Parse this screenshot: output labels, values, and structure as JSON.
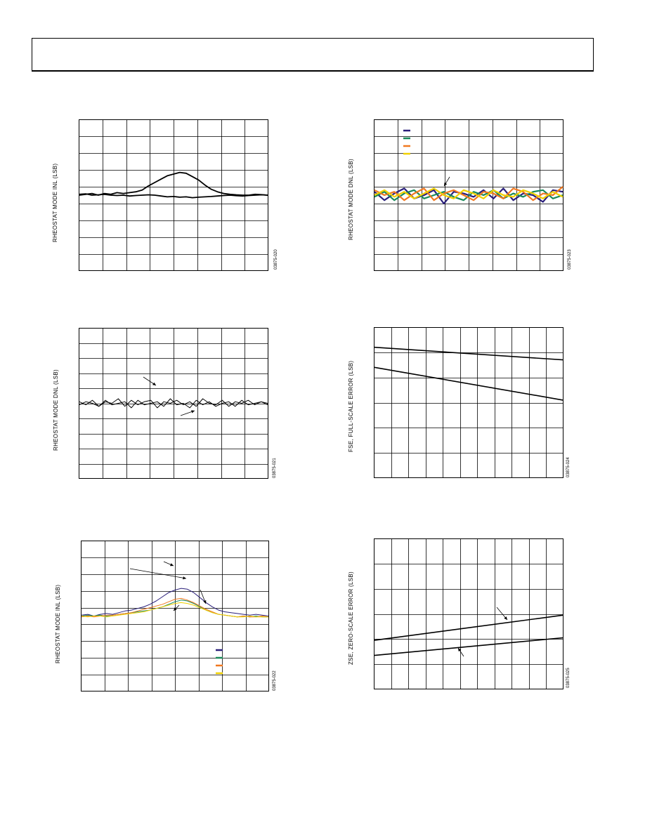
{
  "charts": [
    {
      "id": "c1",
      "chart_data": {
        "type": "line",
        "title": "",
        "ylabel": "RHEOSTAT MODE INL (LSB)",
        "figure_id": "03875-020",
        "grid": true,
        "x_divisions": 8,
        "y_divisions": 9,
        "series": [
          {
            "values": [
              0.0,
              0.05,
              0.1,
              0.0,
              0.1,
              0.05,
              0.15,
              0.1,
              0.15,
              0.2,
              0.3,
              0.55,
              0.75,
              0.95,
              1.15,
              1.25,
              1.35,
              1.3,
              1.1,
              0.9,
              0.6,
              0.35,
              0.2,
              0.1,
              0.05,
              0.02,
              0.0,
              0.0,
              0.05,
              0.03,
              0.0
            ],
            "color": "#000000",
            "width": 1.8
          },
          {
            "values": [
              0.05,
              0.08,
              0.0,
              0.02,
              0.05,
              0.0,
              -0.02,
              0.0,
              -0.05,
              -0.02,
              0.0,
              0.02,
              0.0,
              -0.05,
              -0.1,
              -0.08,
              -0.12,
              -0.1,
              -0.15,
              -0.12,
              -0.1,
              -0.08,
              -0.05,
              -0.02,
              0.0,
              -0.03,
              -0.05,
              -0.02,
              0.0,
              0.02,
              0.0
            ],
            "color": "#000000",
            "width": 1.8
          }
        ]
      }
    },
    {
      "id": "c2",
      "chart_data": {
        "type": "line",
        "title": "",
        "ylabel": "RHEOSTAT MODE DNL (LSB)",
        "figure_id": "03875-023",
        "grid": true,
        "x_divisions": 8,
        "y_divisions": 9,
        "series": [
          {
            "values": [
              0.2,
              -0.3,
              0.1,
              0.4,
              -0.2,
              0.0,
              0.3,
              -0.5,
              0.2,
              0.1,
              -0.1,
              0.3,
              -0.2,
              0.4,
              -0.3,
              0.1,
              0.0,
              -0.4,
              0.3,
              0.2
            ],
            "color": "#2a1f7a",
            "width": 2.2
          },
          {
            "values": [
              -0.1,
              0.2,
              -0.3,
              0.1,
              0.3,
              -0.2,
              0.0,
              0.2,
              -0.1,
              -0.3,
              0.2,
              0.0,
              0.3,
              -0.2,
              0.1,
              -0.1,
              0.2,
              0.3,
              -0.2,
              0.0
            ],
            "color": "#1a8a5a",
            "width": 2.2
          },
          {
            "values": [
              0.3,
              0.0,
              0.2,
              -0.3,
              0.1,
              0.4,
              -0.3,
              0.1,
              0.3,
              0.0,
              -0.3,
              0.2,
              0.1,
              -0.2,
              0.4,
              0.2,
              -0.3,
              0.1,
              0.0,
              0.5
            ],
            "color": "#f07820",
            "width": 2.2
          },
          {
            "values": [
              0.0,
              0.3,
              -0.1,
              0.2,
              -0.2,
              0.1,
              0.4,
              0.0,
              -0.2,
              0.3,
              0.1,
              -0.2,
              0.3,
              0.0,
              -0.1,
              0.3,
              0.1,
              -0.2,
              0.2,
              -0.1
            ],
            "color": "#f0d000",
            "width": 2.2
          }
        ]
      }
    },
    {
      "id": "c3",
      "chart_data": {
        "type": "line",
        "title": "",
        "ylabel": "RHEOSTAT MODE DNL (LSB)",
        "figure_id": "03875-021",
        "grid": true,
        "x_divisions": 8,
        "y_divisions": 10,
        "series": [
          {
            "values": [
              0.1,
              -0.1,
              0.2,
              -0.2,
              0.1,
              0.0,
              0.3,
              -0.2,
              0.2,
              -0.1,
              0.1,
              0.2,
              -0.3,
              0.1,
              0.0,
              0.2,
              -0.1,
              0.1,
              -0.2,
              0.3,
              0.0,
              -0.1,
              0.2,
              -0.2,
              0.1,
              0.0,
              0.2,
              -0.1,
              0.1,
              0.0
            ],
            "color": "#000000",
            "width": 1.0
          },
          {
            "values": [
              -0.1,
              0.1,
              0.0,
              -0.2,
              0.2,
              -0.1,
              0.0,
              0.1,
              -0.3,
              0.2,
              -0.1,
              0.0,
              0.1,
              -0.2,
              0.3,
              -0.1,
              0.0,
              -0.3,
              0.2,
              -0.1,
              0.1,
              -0.2,
              0.0,
              0.1,
              -0.2,
              0.2,
              -0.1,
              0.0,
              0.1,
              -0.1
            ],
            "color": "#000000",
            "width": 1.0
          }
        ]
      }
    },
    {
      "id": "c4",
      "chart_data": {
        "type": "line",
        "title": "",
        "ylabel": "FSE, FULL-SCALE ERROR (LSB)",
        "figure_id": "03875-024",
        "grid": true,
        "x_divisions": 11,
        "y_divisions": 6,
        "series": [
          {
            "values": [
              0.7,
              0.2
            ],
            "color": "#000000",
            "width": 1.6
          },
          {
            "values": [
              -0.1,
              -1.4
            ],
            "color": "#000000",
            "width": 1.6
          }
        ]
      }
    },
    {
      "id": "c5",
      "chart_data": {
        "type": "line",
        "title": "",
        "ylabel": "RHEOSTAT MODE INL (LSB)",
        "figure_id": "03875-022",
        "grid": true,
        "x_divisions": 8,
        "y_divisions": 9,
        "series": [
          {
            "values": [
              0.05,
              0.1,
              0.0,
              0.1,
              0.15,
              0.1,
              0.2,
              0.3,
              0.35,
              0.45,
              0.55,
              0.7,
              0.9,
              1.15,
              1.4,
              1.55,
              1.65,
              1.6,
              1.4,
              1.1,
              0.8,
              0.55,
              0.35,
              0.25,
              0.2,
              0.15,
              0.1,
              0.05,
              0.1,
              0.05,
              0.0
            ],
            "color": "#2a1f7a",
            "width": 1.0
          },
          {
            "values": [
              0.0,
              0.05,
              0.0,
              0.05,
              0.0,
              0.05,
              0.1,
              0.15,
              0.2,
              0.25,
              0.3,
              0.35,
              0.45,
              0.55,
              0.7,
              0.85,
              0.95,
              0.9,
              0.75,
              0.55,
              0.35,
              0.2,
              0.1,
              0.05,
              0.0,
              -0.05,
              0.0,
              -0.05,
              0.0,
              -0.05,
              -0.05
            ],
            "color": "#1a8a5a",
            "width": 1.0
          },
          {
            "values": [
              -0.05,
              0.0,
              -0.05,
              0.0,
              0.05,
              0.05,
              0.1,
              0.15,
              0.2,
              0.3,
              0.4,
              0.5,
              0.6,
              0.7,
              0.85,
              1.0,
              1.05,
              0.95,
              0.8,
              0.6,
              0.4,
              0.25,
              0.1,
              0.05,
              0.0,
              -0.05,
              0.0,
              -0.05,
              -0.05,
              0.0,
              -0.05
            ],
            "color": "#f07820",
            "width": 1.0
          },
          {
            "values": [
              0.0,
              -0.05,
              0.0,
              0.0,
              -0.05,
              0.0,
              0.05,
              0.1,
              0.15,
              0.2,
              0.25,
              0.35,
              0.45,
              0.55,
              0.65,
              0.75,
              0.8,
              0.75,
              0.65,
              0.5,
              0.35,
              0.2,
              0.1,
              0.05,
              0.0,
              -0.05,
              -0.05,
              0.0,
              -0.05,
              -0.05,
              -0.05
            ],
            "color": "#f0d000",
            "width": 1.0
          }
        ]
      }
    },
    {
      "id": "c6",
      "chart_data": {
        "type": "line",
        "title": "",
        "ylabel": "ZSE, ZERO-SCALE ERROR (LSB)",
        "figure_id": "03875-025",
        "grid": true,
        "x_divisions": 11,
        "y_divisions": 6,
        "series": [
          {
            "values": [
              -1.05,
              -0.05
            ],
            "color": "#000000",
            "width": 1.6
          },
          {
            "values": [
              -1.65,
              -0.95
            ],
            "color": "#000000",
            "width": 1.6
          }
        ]
      }
    }
  ]
}
